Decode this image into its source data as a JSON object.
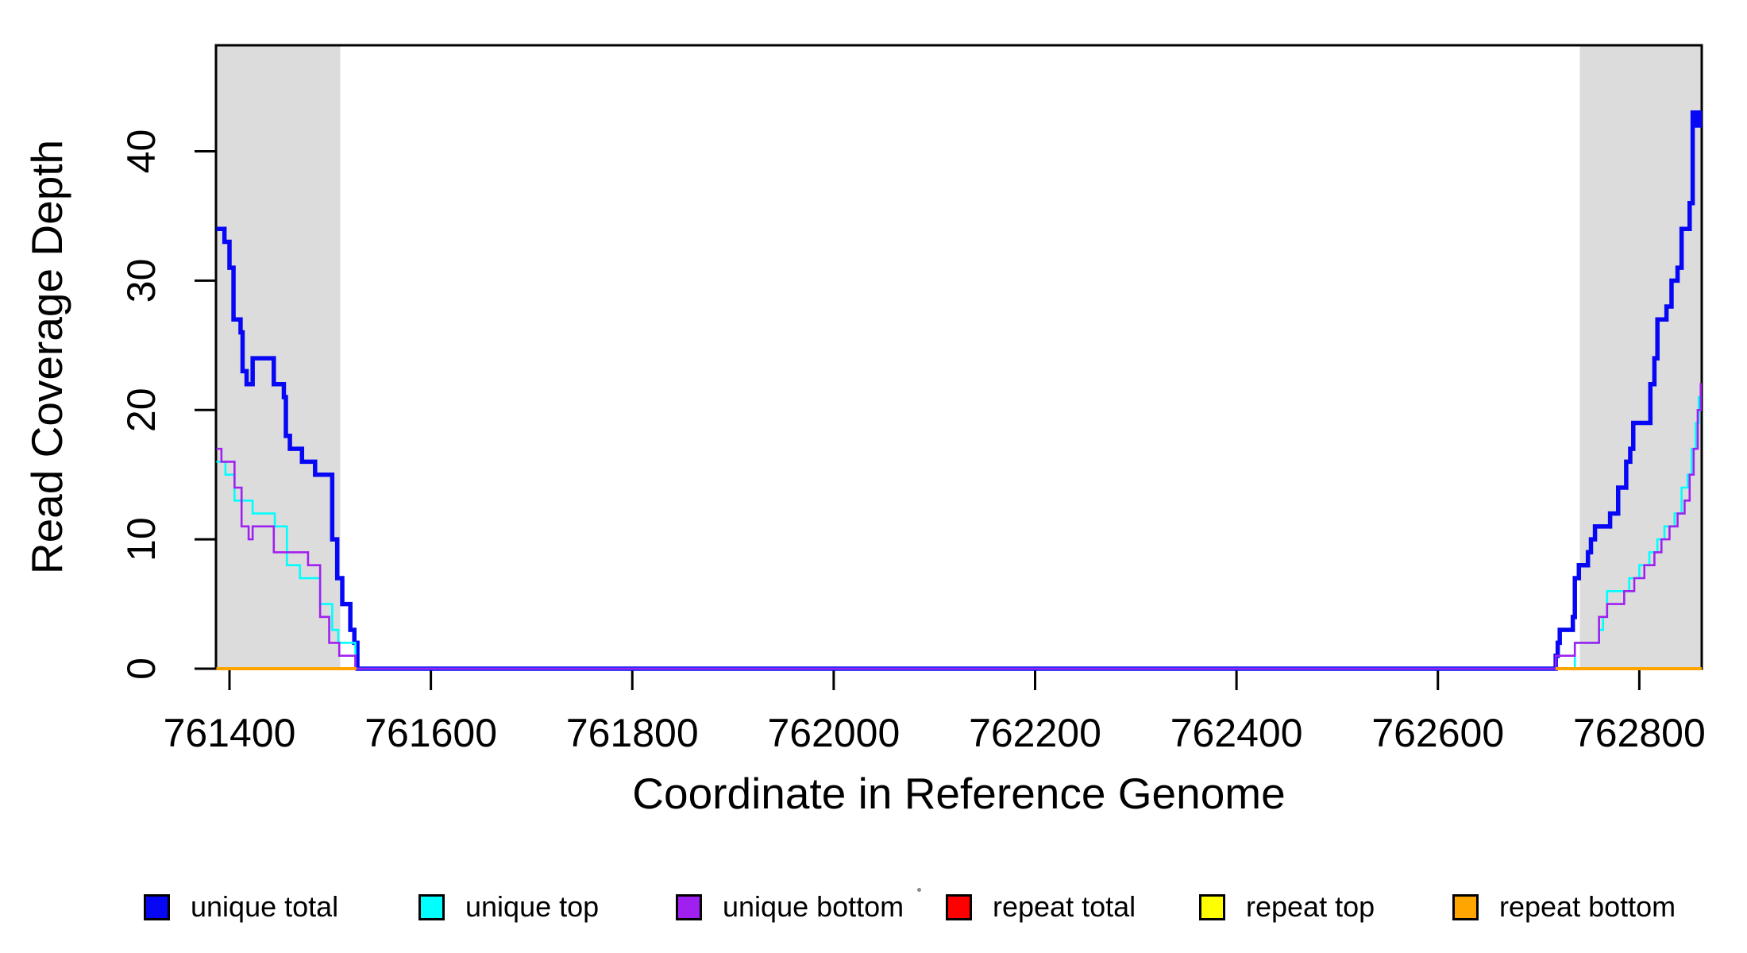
{
  "axes": {
    "x": {
      "label": "Coordinate in Reference Genome",
      "min": 761386.6,
      "max": 762862,
      "ticks": [
        761400,
        761600,
        761800,
        762000,
        762200,
        762400,
        762600,
        762800
      ]
    },
    "y": {
      "label": "Read Coverage Depth",
      "min": 0,
      "max": 48.2,
      "ticks": [
        0,
        10,
        20,
        30,
        40
      ]
    }
  },
  "chart_data": {
    "type": "line",
    "style": "step",
    "title": "",
    "xlabel": "Coordinate in Reference Genome",
    "ylabel": "Read Coverage Depth",
    "xlim": [
      761386.6,
      762862
    ],
    "ylim": [
      0,
      48.2
    ],
    "grid": false,
    "legend_position": "bottom",
    "shaded_regions": [
      {
        "x1": 761386.6,
        "x2": 761510,
        "color": "#dcdcdc",
        "name": "left-repeat-region"
      },
      {
        "x1": 762741,
        "x2": 762862,
        "color": "#dcdcdc",
        "name": "right-repeat-region"
      }
    ],
    "series": [
      {
        "name": "unique total",
        "color": "#0707f5",
        "width": 5.5,
        "end": 762862,
        "steps": [
          [
            761387,
            34
          ],
          [
            761395,
            33
          ],
          [
            761400,
            31
          ],
          [
            761404,
            27
          ],
          [
            761411,
            26
          ],
          [
            761413,
            23
          ],
          [
            761417,
            22
          ],
          [
            761423,
            24
          ],
          [
            761444,
            22
          ],
          [
            761454,
            21
          ],
          [
            761456,
            18
          ],
          [
            761460,
            17
          ],
          [
            761472,
            16
          ],
          [
            761485,
            15
          ],
          [
            761502,
            10
          ],
          [
            761507,
            7
          ],
          [
            761512,
            5
          ],
          [
            761520,
            3
          ],
          [
            761524,
            2
          ],
          [
            761527,
            0
          ],
          [
            762717,
            1
          ],
          [
            762719,
            2
          ],
          [
            762721,
            3
          ],
          [
            762734,
            4
          ],
          [
            762736,
            7
          ],
          [
            762740,
            8
          ],
          [
            762749,
            9
          ],
          [
            762752,
            10
          ],
          [
            762756,
            11
          ],
          [
            762771,
            12
          ],
          [
            762779,
            14
          ],
          [
            762787,
            16
          ],
          [
            762791,
            17
          ],
          [
            762794,
            19
          ],
          [
            762811,
            22
          ],
          [
            762815,
            24
          ],
          [
            762818,
            27
          ],
          [
            762827,
            28
          ],
          [
            762832,
            30
          ],
          [
            762838,
            31
          ],
          [
            762842,
            34
          ],
          [
            762850,
            36
          ],
          [
            762853,
            43
          ],
          [
            762857,
            42
          ],
          [
            762860,
            43
          ]
        ]
      },
      {
        "name": "unique top",
        "color": "#00ffff",
        "width": 2.6,
        "end": 762862,
        "steps": [
          [
            761387,
            16
          ],
          [
            761396,
            15
          ],
          [
            761405,
            13
          ],
          [
            761423,
            12
          ],
          [
            761445,
            11
          ],
          [
            761457,
            8
          ],
          [
            761470,
            7
          ],
          [
            761490,
            5
          ],
          [
            761502,
            3
          ],
          [
            761508,
            2
          ],
          [
            761525,
            0
          ],
          [
            762736,
            2
          ],
          [
            762760,
            3
          ],
          [
            762764,
            4
          ],
          [
            762768,
            6
          ],
          [
            762790,
            7
          ],
          [
            762800,
            8
          ],
          [
            762810,
            9
          ],
          [
            762818,
            10
          ],
          [
            762825,
            11
          ],
          [
            762835,
            12
          ],
          [
            762842,
            14
          ],
          [
            762848,
            15
          ],
          [
            762852,
            17
          ],
          [
            762856,
            19
          ],
          [
            762859,
            21
          ],
          [
            762861,
            20
          ]
        ]
      },
      {
        "name": "unique bottom",
        "color": "#a020f0",
        "width": 2.6,
        "end": 762862,
        "steps": [
          [
            761387,
            17
          ],
          [
            761392,
            16
          ],
          [
            761405,
            14
          ],
          [
            761412,
            11
          ],
          [
            761419,
            10
          ],
          [
            761423,
            11
          ],
          [
            761444,
            9
          ],
          [
            761478,
            8
          ],
          [
            761490,
            4
          ],
          [
            761499,
            2
          ],
          [
            761509,
            1
          ],
          [
            761525,
            0
          ],
          [
            762717,
            1
          ],
          [
            762736,
            2
          ],
          [
            762760,
            4
          ],
          [
            762768,
            5
          ],
          [
            762785,
            6
          ],
          [
            762795,
            7
          ],
          [
            762805,
            8
          ],
          [
            762815,
            9
          ],
          [
            762822,
            10
          ],
          [
            762830,
            11
          ],
          [
            762838,
            12
          ],
          [
            762845,
            13
          ],
          [
            762850,
            15
          ],
          [
            762854,
            17
          ],
          [
            762858,
            20
          ],
          [
            762861,
            22
          ]
        ]
      },
      {
        "name": "repeat total",
        "color": "#ff0000",
        "width": 2.6,
        "zero_segments": [
          [
            761387,
            761526
          ],
          [
            762717,
            762862
          ]
        ]
      },
      {
        "name": "repeat top",
        "color": "#ffff00",
        "width": 2.6,
        "zero_segments": [
          [
            761387,
            761526
          ],
          [
            762717,
            762862
          ]
        ]
      },
      {
        "name": "repeat bottom",
        "color": "#ffa500",
        "width": 4,
        "zero_segments": [
          [
            761387,
            761526
          ],
          [
            762717,
            762862
          ]
        ]
      }
    ]
  },
  "legend": {
    "items": [
      {
        "label": "unique total",
        "color": "#0707f5"
      },
      {
        "label": "unique top",
        "color": "#00ffff"
      },
      {
        "label": "unique bottom",
        "color": "#a020f0"
      },
      {
        "label": "repeat total",
        "color": "#ff0000"
      },
      {
        "label": "repeat top",
        "color": "#ffff00"
      },
      {
        "label": "repeat bottom",
        "color": "#ffa500"
      }
    ]
  },
  "colors": {
    "background": "#ffffff",
    "plot_border": "#000000",
    "shading": "#dcdcdc"
  }
}
